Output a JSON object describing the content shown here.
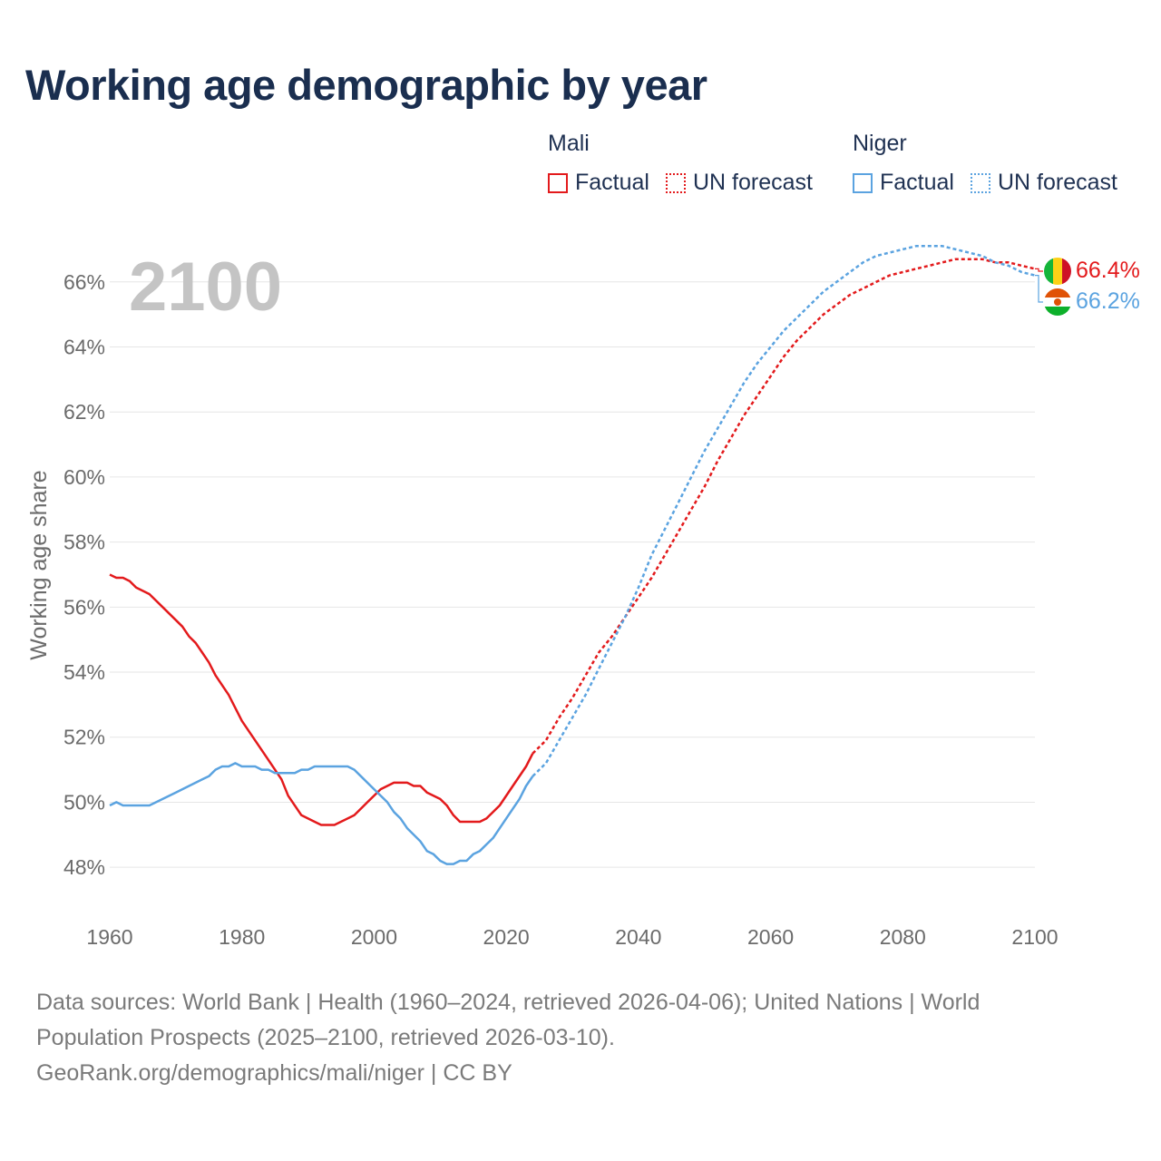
{
  "title": "Working age demographic by year",
  "legend": {
    "groups": [
      {
        "name": "Mali",
        "factual_label": "Factual",
        "forecast_label": "UN forecast",
        "color": "#e31a1c"
      },
      {
        "name": "Niger",
        "factual_label": "Factual",
        "forecast_label": "UN forecast",
        "color": "#5ba3e0"
      }
    ]
  },
  "footer": {
    "line1": "Data sources: World Bank | Health (1960–2024, retrieved 2026-04-06); United Nations | World",
    "line2": "Population Prospects (2025–2100, retrieved 2026-03-10).",
    "line3": "GeoRank.org/demographics/mali/niger | CC BY"
  },
  "chart_data": {
    "type": "line",
    "title": "Working age demographic by year",
    "year_label": "2100",
    "xlabel": "",
    "ylabel": "Working age share",
    "xlim": [
      1960,
      2100
    ],
    "ylim": [
      47,
      67.5
    ],
    "x_ticks": [
      "1960",
      "1980",
      "2000",
      "2020",
      "2040",
      "2060",
      "2080",
      "2100"
    ],
    "x_tick_values": [
      1960,
      1980,
      2000,
      2020,
      2040,
      2060,
      2080,
      2100
    ],
    "y_ticks": [
      "48%",
      "50%",
      "52%",
      "54%",
      "56%",
      "58%",
      "60%",
      "62%",
      "64%",
      "66%"
    ],
    "y_tick_values": [
      48,
      50,
      52,
      54,
      56,
      58,
      60,
      62,
      64,
      66
    ],
    "grid": true,
    "series": [
      {
        "name": "Mali",
        "segment": "Factual",
        "color": "#e31a1c",
        "style": "solid",
        "points": [
          [
            1960,
            57.0
          ],
          [
            1961,
            56.9
          ],
          [
            1962,
            56.9
          ],
          [
            1963,
            56.8
          ],
          [
            1964,
            56.6
          ],
          [
            1966,
            56.4
          ],
          [
            1968,
            56.0
          ],
          [
            1970,
            55.6
          ],
          [
            1971,
            55.4
          ],
          [
            1972,
            55.1
          ],
          [
            1973,
            54.9
          ],
          [
            1974,
            54.6
          ],
          [
            1975,
            54.3
          ],
          [
            1976,
            53.9
          ],
          [
            1978,
            53.3
          ],
          [
            1980,
            52.5
          ],
          [
            1982,
            51.9
          ],
          [
            1984,
            51.3
          ],
          [
            1986,
            50.7
          ],
          [
            1987,
            50.2
          ],
          [
            1989,
            49.6
          ],
          [
            1991,
            49.4
          ],
          [
            1992,
            49.3
          ],
          [
            1994,
            49.3
          ],
          [
            1997,
            49.6
          ],
          [
            1999,
            50.0
          ],
          [
            2001,
            50.4
          ],
          [
            2003,
            50.6
          ],
          [
            2005,
            50.6
          ],
          [
            2006,
            50.5
          ],
          [
            2007,
            50.5
          ],
          [
            2008,
            50.3
          ],
          [
            2010,
            50.1
          ],
          [
            2011,
            49.9
          ],
          [
            2012,
            49.6
          ],
          [
            2013,
            49.4
          ],
          [
            2016,
            49.4
          ],
          [
            2017,
            49.5
          ],
          [
            2019,
            49.9
          ],
          [
            2021,
            50.5
          ],
          [
            2023,
            51.1
          ],
          [
            2024,
            51.5
          ]
        ]
      },
      {
        "name": "Mali",
        "segment": "UN forecast",
        "color": "#e31a1c",
        "style": "dotted",
        "points": [
          [
            2024,
            51.5
          ],
          [
            2026,
            51.9
          ],
          [
            2028,
            52.6
          ],
          [
            2030,
            53.2
          ],
          [
            2032,
            53.9
          ],
          [
            2034,
            54.6
          ],
          [
            2036,
            55.1
          ],
          [
            2038,
            55.7
          ],
          [
            2040,
            56.3
          ],
          [
            2042,
            56.9
          ],
          [
            2044,
            57.6
          ],
          [
            2046,
            58.3
          ],
          [
            2048,
            59.0
          ],
          [
            2050,
            59.7
          ],
          [
            2052,
            60.5
          ],
          [
            2054,
            61.2
          ],
          [
            2056,
            61.9
          ],
          [
            2058,
            62.5
          ],
          [
            2060,
            63.1
          ],
          [
            2062,
            63.7
          ],
          [
            2064,
            64.2
          ],
          [
            2066,
            64.6
          ],
          [
            2068,
            65.0
          ],
          [
            2070,
            65.3
          ],
          [
            2072,
            65.6
          ],
          [
            2074,
            65.8
          ],
          [
            2076,
            66.0
          ],
          [
            2078,
            66.2
          ],
          [
            2080,
            66.3
          ],
          [
            2082,
            66.4
          ],
          [
            2084,
            66.5
          ],
          [
            2086,
            66.6
          ],
          [
            2088,
            66.7
          ],
          [
            2090,
            66.7
          ],
          [
            2092,
            66.7
          ],
          [
            2094,
            66.6
          ],
          [
            2096,
            66.6
          ],
          [
            2098,
            66.5
          ],
          [
            2100,
            66.4
          ]
        ]
      },
      {
        "name": "Niger",
        "segment": "Factual",
        "color": "#5ba3e0",
        "style": "solid",
        "points": [
          [
            1960,
            49.9
          ],
          [
            1961,
            50.0
          ],
          [
            1962,
            49.9
          ],
          [
            1963,
            49.9
          ],
          [
            1966,
            49.9
          ],
          [
            1968,
            50.1
          ],
          [
            1970,
            50.3
          ],
          [
            1972,
            50.5
          ],
          [
            1974,
            50.7
          ],
          [
            1975,
            50.8
          ],
          [
            1976,
            51.0
          ],
          [
            1977,
            51.1
          ],
          [
            1978,
            51.1
          ],
          [
            1979,
            51.2
          ],
          [
            1980,
            51.1
          ],
          [
            1982,
            51.1
          ],
          [
            1983,
            51.0
          ],
          [
            1984,
            51.0
          ],
          [
            1985,
            50.9
          ],
          [
            1988,
            50.9
          ],
          [
            1989,
            51.0
          ],
          [
            1990,
            51.0
          ],
          [
            1991,
            51.1
          ],
          [
            1996,
            51.1
          ],
          [
            1997,
            51.0
          ],
          [
            1998,
            50.8
          ],
          [
            2000,
            50.4
          ],
          [
            2002,
            50.0
          ],
          [
            2003,
            49.7
          ],
          [
            2004,
            49.5
          ],
          [
            2005,
            49.2
          ],
          [
            2007,
            48.8
          ],
          [
            2008,
            48.5
          ],
          [
            2009,
            48.4
          ],
          [
            2010,
            48.2
          ],
          [
            2011,
            48.1
          ],
          [
            2012,
            48.1
          ],
          [
            2013,
            48.2
          ],
          [
            2014,
            48.2
          ],
          [
            2015,
            48.4
          ],
          [
            2016,
            48.5
          ],
          [
            2017,
            48.7
          ],
          [
            2018,
            48.9
          ],
          [
            2020,
            49.5
          ],
          [
            2022,
            50.1
          ],
          [
            2023,
            50.5
          ],
          [
            2024,
            50.8
          ]
        ]
      },
      {
        "name": "Niger",
        "segment": "UN forecast",
        "color": "#5ba3e0",
        "style": "dotted",
        "points": [
          [
            2024,
            50.8
          ],
          [
            2026,
            51.2
          ],
          [
            2028,
            51.9
          ],
          [
            2030,
            52.6
          ],
          [
            2032,
            53.3
          ],
          [
            2034,
            54.1
          ],
          [
            2036,
            54.9
          ],
          [
            2038,
            55.7
          ],
          [
            2040,
            56.6
          ],
          [
            2042,
            57.6
          ],
          [
            2044,
            58.4
          ],
          [
            2046,
            59.2
          ],
          [
            2048,
            60.0
          ],
          [
            2050,
            60.8
          ],
          [
            2052,
            61.5
          ],
          [
            2054,
            62.2
          ],
          [
            2056,
            62.9
          ],
          [
            2058,
            63.5
          ],
          [
            2060,
            64.0
          ],
          [
            2062,
            64.5
          ],
          [
            2064,
            64.9
          ],
          [
            2066,
            65.3
          ],
          [
            2068,
            65.7
          ],
          [
            2070,
            66.0
          ],
          [
            2072,
            66.3
          ],
          [
            2074,
            66.6
          ],
          [
            2076,
            66.8
          ],
          [
            2078,
            66.9
          ],
          [
            2080,
            67.0
          ],
          [
            2082,
            67.1
          ],
          [
            2084,
            67.1
          ],
          [
            2086,
            67.1
          ],
          [
            2088,
            67.0
          ],
          [
            2090,
            66.9
          ],
          [
            2092,
            66.8
          ],
          [
            2094,
            66.6
          ],
          [
            2096,
            66.5
          ],
          [
            2098,
            66.3
          ],
          [
            2100,
            66.2
          ]
        ]
      }
    ],
    "end_labels": [
      {
        "name": "Mali",
        "text": "66.4%",
        "value": 66.4,
        "color": "#e31a1c",
        "flag": "mali-flag"
      },
      {
        "name": "Niger",
        "text": "66.2%",
        "value": 66.2,
        "color": "#5ba3e0",
        "flag": "niger-flag"
      }
    ]
  }
}
